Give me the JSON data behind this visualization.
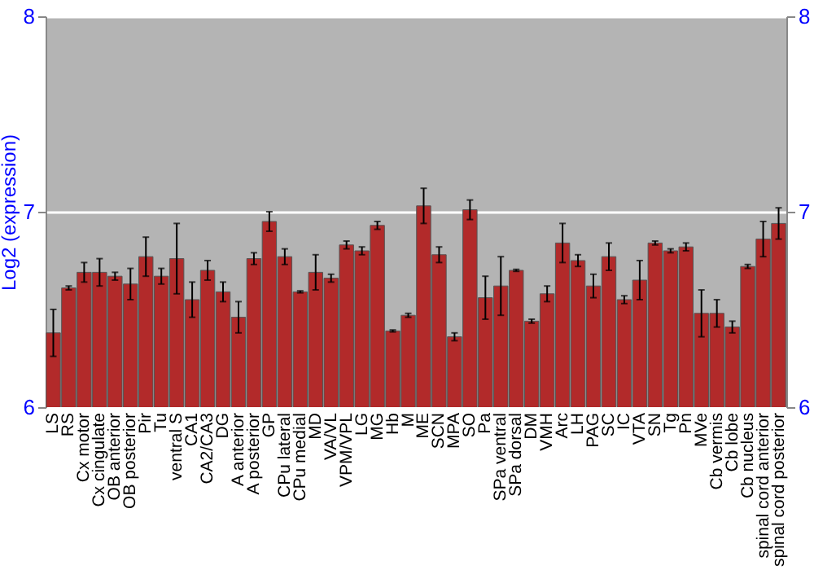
{
  "chart_data": {
    "type": "bar",
    "ylabel": "Log2 (expression)",
    "categories": [
      "LS",
      "RS",
      "Cx motor",
      "Cx cingulate",
      "OB anterior",
      "OB posterior",
      "Pir",
      "Tu",
      "ventral S",
      "CA1",
      "CA2/CA3",
      "DG",
      "A anterior",
      "A posterior",
      "GP",
      "CPu lateral",
      "CPu medial",
      "MD",
      "VA/VL",
      "VPM/VPL",
      "LG",
      "MG",
      "Hb",
      "M",
      "ME",
      "SCN",
      "MPA",
      "SO",
      "Pa",
      "SPa ventral",
      "SPa dorsal",
      "DM",
      "VMH",
      "Arc",
      "LH",
      "PAG",
      "SC",
      "IC",
      "VTA",
      "SN",
      "Tg",
      "Pn",
      "MVe",
      "Cb vermis",
      "Cb lobe",
      "Cb nucleus",
      "spinal cord anterior",
      "spinal cord posterior"
    ],
    "values": [
      6.38,
      6.61,
      6.69,
      6.69,
      6.67,
      6.63,
      6.77,
      6.67,
      6.76,
      6.55,
      6.7,
      6.59,
      6.46,
      6.76,
      6.95,
      6.77,
      6.59,
      6.69,
      6.66,
      6.83,
      6.8,
      6.93,
      6.39,
      6.47,
      7.03,
      6.78,
      6.36,
      7.01,
      6.56,
      6.62,
      6.7,
      6.44,
      6.58,
      6.84,
      6.75,
      6.62,
      6.77,
      6.55,
      6.65,
      6.84,
      6.8,
      6.82,
      6.48,
      6.48,
      6.41,
      6.72,
      6.86,
      6.94
    ],
    "errors": [
      0.12,
      0.01,
      0.05,
      0.07,
      0.02,
      0.08,
      0.1,
      0.04,
      0.18,
      0.09,
      0.05,
      0.05,
      0.08,
      0.03,
      0.05,
      0.04,
      0.005,
      0.09,
      0.02,
      0.02,
      0.02,
      0.02,
      0.005,
      0.01,
      0.09,
      0.04,
      0.02,
      0.05,
      0.11,
      0.15,
      0.005,
      0.01,
      0.04,
      0.1,
      0.03,
      0.06,
      0.07,
      0.02,
      0.1,
      0.01,
      0.01,
      0.02,
      0.12,
      0.07,
      0.03,
      0.01,
      0.09,
      0.08
    ],
    "color": "#b22a2a",
    "ylim": [
      6,
      8
    ],
    "yticks": [
      6,
      7,
      8
    ],
    "y2lim": [
      6,
      8
    ],
    "y2ticks": [
      6,
      7,
      8
    ],
    "grid": "y"
  }
}
